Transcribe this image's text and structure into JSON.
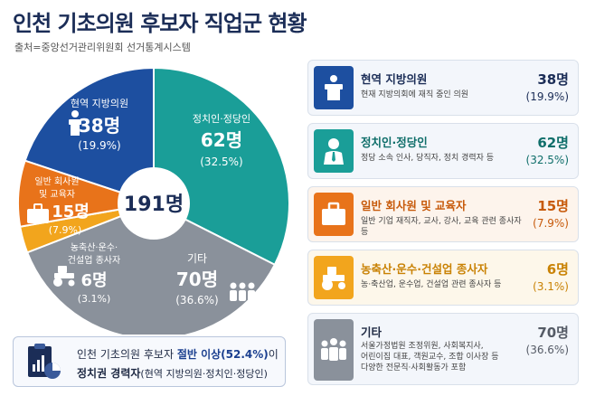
{
  "header": {
    "title": "인천 기초의원 후보자 직업군 현황",
    "source": "출처=중앙선거관리위원회 선거통계시스템"
  },
  "chart_data": {
    "type": "pie",
    "title": "인천 기초의원 후보자 직업군 현황",
    "center_label": "191명",
    "total": 191,
    "unit": "명",
    "slices": [
      {
        "name": "현역 지방의원",
        "value": 38,
        "percent_label": "(19.9%)",
        "count_label": "38명",
        "color": "#1d4fa0"
      },
      {
        "name": "정치인·정당인",
        "value": 62,
        "percent_label": "(32.5%)",
        "count_label": "62명",
        "color": "#1a9e98"
      },
      {
        "name": "기타",
        "value": 70,
        "percent_label": "(36.6%)",
        "count_label": "70명",
        "color": "#8a919b"
      },
      {
        "name": "농축산·운수·건설업 종사자",
        "value": 6,
        "percent_label": "(3.1%)",
        "count_label": "6명",
        "color": "#f2a51d"
      },
      {
        "name": "일반 회사원 및 교육자",
        "value": 15,
        "percent_label": "(7.9%)",
        "count_label": "15명",
        "color": "#e8731a"
      }
    ]
  },
  "pie_labels": {
    "incumbent": {
      "line1": "현역 지방의원"
    },
    "politician": {
      "line1": "정치인·정당인"
    },
    "etc": {
      "line1": "기타"
    },
    "agri": {
      "line1": "농축산·운수·",
      "line2": "건설업 종사자"
    },
    "office": {
      "line1": "일반 회사원",
      "line2": "및 교육자"
    }
  },
  "cards": [
    {
      "name": "현역 지방의원",
      "desc": "현재 지방의회에 재직 중인 의원",
      "count": "38명",
      "pct": "(19.9%)",
      "color": "#1d4fa0",
      "icon": "podium-icon"
    },
    {
      "name": "정치인·정당인",
      "desc": "정당 소속 인사, 당직자, 정치 경력자 등",
      "count": "62명",
      "pct": "(32.5%)",
      "color": "#1a9e98",
      "icon": "businessman-icon"
    },
    {
      "name": "일반 회사원 및 교육자",
      "desc": "일반 기업 재직자, 교사, 강사, 교육 관련 종사자 등",
      "count": "15명",
      "pct": "(7.9%)",
      "color": "#e8731a",
      "icon": "briefcase-icon"
    },
    {
      "name": "농축산·운수·건설업 종사자",
      "desc": "농·축산업, 운수업, 건설업 관련 종사자 등",
      "count": "6명",
      "pct": "(3.1%)",
      "color": "#f2a51d",
      "icon": "tractor-icon"
    },
    {
      "name": "기타",
      "desc_lines": [
        "서울가정법원 조정위원, 사회복지사,",
        "어린이집 대표, 객원교수, 조합 이사장 등",
        "다양한 전문직·사회활동가 포함"
      ],
      "count": "70명",
      "pct": "(36.6%)",
      "color": "#8a919b",
      "icon": "people-icon"
    }
  ],
  "callout": {
    "line1_a": "인천 기초의원 후보자 ",
    "line1_b": "절반 이상(52.4%)",
    "line1_c": "이",
    "line2_a": "정치권 경력자",
    "line2_b": "(현역 지방의원·정치인·정당인)",
    "icon": "report-chart-icon"
  }
}
